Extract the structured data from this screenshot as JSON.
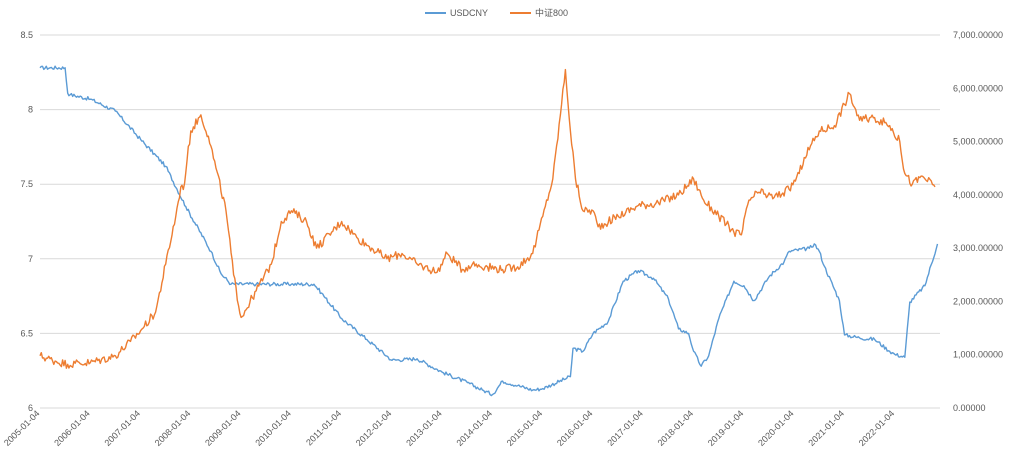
{
  "chart_data": {
    "type": "line",
    "title": "",
    "legend": {
      "position": "top-center",
      "entries": [
        "USDCNY",
        "中证800"
      ]
    },
    "x_tick_labels": [
      "2005-01-04",
      "2006-01-04",
      "2007-01-04",
      "2008-01-04",
      "2009-01-04",
      "2010-01-04",
      "2011-01-04",
      "2012-01-04",
      "2013-01-04",
      "2014-01-04",
      "2015-01-04",
      "2016-01-04",
      "2017-01-04",
      "2018-01-04",
      "2019-01-04",
      "2020-01-04",
      "2021-01-04",
      "2022-01-04"
    ],
    "y_left": {
      "min": 6,
      "max": 8.5,
      "ticks": [
        "8.5",
        "8",
        "7.5",
        "7",
        "6.5",
        "6"
      ]
    },
    "y_right": {
      "min": 0,
      "max": 7000,
      "ticks": [
        "7,000.00000",
        "6,000.00000",
        "5,000.00000",
        "4,000.00000",
        "3,000.00000",
        "2,000.00000",
        "1,000.00000",
        "0.00000"
      ]
    },
    "grid": "horizontal",
    "series": [
      {
        "name": "USDCNY",
        "color": "#5b9bd5",
        "axis": "left",
        "x": [
          2005.0,
          2005.5,
          2005.55,
          2005.6,
          2006.0,
          2006.5,
          2007.0,
          2007.5,
          2007.9,
          2008.4,
          2008.6,
          2008.8,
          2009.3,
          2010.0,
          2010.45,
          2010.6,
          2011.0,
          2011.5,
          2012.0,
          2012.5,
          2013.0,
          2013.5,
          2013.8,
          2014.0,
          2014.2,
          2014.5,
          2014.8,
          2015.0,
          2015.55,
          2015.6,
          2015.8,
          2016.0,
          2016.3,
          2016.6,
          2016.9,
          2017.2,
          2017.5,
          2017.7,
          2017.9,
          2018.0,
          2018.15,
          2018.3,
          2018.5,
          2018.8,
          2019.0,
          2019.2,
          2019.5,
          2019.8,
          2019.9,
          2020.3,
          2020.4,
          2020.5,
          2020.6,
          2020.9,
          2021.0,
          2021.3,
          2021.6,
          2021.9,
          2022.0,
          2022.2,
          2022.3,
          2022.6,
          2022.85
        ],
        "values": [
          8.28,
          8.28,
          8.11,
          8.1,
          8.07,
          7.99,
          7.8,
          7.62,
          7.35,
          7.05,
          6.9,
          6.83,
          6.83,
          6.83,
          6.83,
          6.77,
          6.6,
          6.46,
          6.32,
          6.33,
          6.24,
          6.17,
          6.12,
          6.09,
          6.18,
          6.15,
          6.12,
          6.13,
          6.21,
          6.4,
          6.38,
          6.5,
          6.58,
          6.85,
          6.92,
          6.87,
          6.73,
          6.53,
          6.5,
          6.38,
          6.28,
          6.35,
          6.6,
          6.85,
          6.82,
          6.72,
          6.88,
          6.98,
          7.05,
          7.07,
          7.1,
          7.05,
          6.95,
          6.72,
          6.49,
          6.47,
          6.46,
          6.38,
          6.36,
          6.34,
          6.71,
          6.82,
          7.1
        ]
      },
      {
        "name": "中证800",
        "color": "#ed7d31",
        "axis": "right",
        "x": [
          2005.0,
          2005.3,
          2005.55,
          2005.7,
          2006.0,
          2006.5,
          2006.8,
          2007.0,
          2007.3,
          2007.5,
          2007.7,
          2007.8,
          2007.85,
          2008.0,
          2008.2,
          2008.35,
          2008.5,
          2008.7,
          2008.85,
          2009.0,
          2009.3,
          2009.6,
          2009.8,
          2010.0,
          2010.3,
          2010.5,
          2010.8,
          2011.0,
          2011.3,
          2011.6,
          2011.9,
          2012.2,
          2012.5,
          2012.9,
          2013.1,
          2013.4,
          2013.6,
          2013.9,
          2014.2,
          2014.5,
          2014.8,
          2015.0,
          2015.2,
          2015.35,
          2015.45,
          2015.55,
          2015.65,
          2015.8,
          2016.0,
          2016.1,
          2016.5,
          2016.9,
          2017.3,
          2017.7,
          2018.0,
          2018.2,
          2018.5,
          2018.8,
          2018.95,
          2019.1,
          2019.3,
          2019.6,
          2019.9,
          2020.1,
          2020.2,
          2020.5,
          2020.8,
          2021.0,
          2021.1,
          2021.3,
          2021.6,
          2021.9,
          2022.1,
          2022.2,
          2022.35,
          2022.55,
          2022.8
        ],
        "values": [
          980,
          880,
          820,
          840,
          850,
          980,
          1250,
          1450,
          1800,
          2700,
          3600,
          4150,
          4100,
          5200,
          5500,
          5100,
          4500,
          3700,
          2500,
          1700,
          2200,
          2700,
          3500,
          3700,
          3500,
          3000,
          3300,
          3500,
          3200,
          3000,
          2800,
          2900,
          2700,
          2550,
          2900,
          2600,
          2700,
          2650,
          2600,
          2650,
          2900,
          3600,
          4300,
          5500,
          6350,
          5200,
          4300,
          3700,
          3700,
          3400,
          3600,
          3800,
          3850,
          4000,
          4300,
          3900,
          3600,
          3300,
          3250,
          3900,
          4050,
          3950,
          4100,
          4400,
          4700,
          5200,
          5300,
          5700,
          5900,
          5400,
          5450,
          5300,
          5000,
          4400,
          4200,
          4350,
          4150
        ]
      }
    ]
  }
}
